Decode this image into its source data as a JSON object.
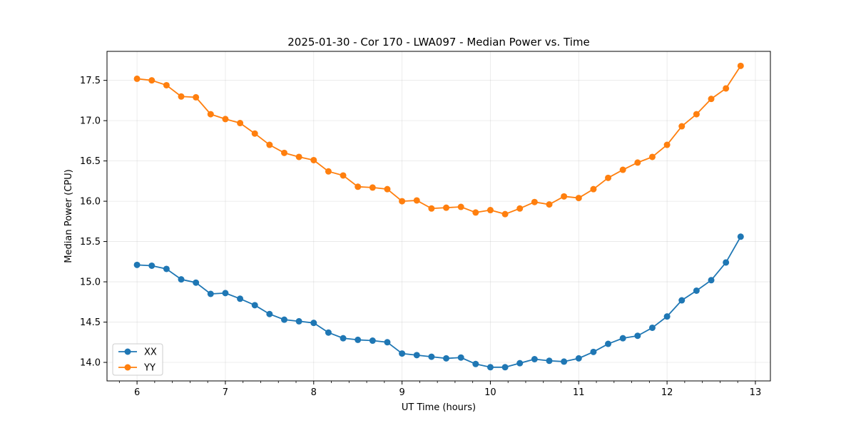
{
  "chart_data": {
    "type": "line",
    "title": "2025-01-30 - Cor 170 - LWA097 - Median Power vs. Time",
    "xlabel": "UT Time (hours)",
    "ylabel": "Median Power (CPU)",
    "xlim": [
      5.66,
      13.17
    ],
    "ylim": [
      13.77,
      17.86
    ],
    "xticks": [
      6,
      7,
      8,
      9,
      10,
      11,
      12,
      13
    ],
    "yticks": [
      14.0,
      14.5,
      15.0,
      15.5,
      16.0,
      16.5,
      17.0,
      17.5
    ],
    "xtick_labels": [
      "6",
      "7",
      "8",
      "9",
      "10",
      "11",
      "12",
      "13"
    ],
    "ytick_labels": [
      "14.0",
      "14.5",
      "15.0",
      "15.5",
      "16.0",
      "16.5",
      "17.0",
      "17.5"
    ],
    "grid": true,
    "legend_position": "lower-left",
    "x": [
      6.0,
      6.1667,
      6.3333,
      6.5,
      6.6667,
      6.8333,
      7.0,
      7.1667,
      7.3333,
      7.5,
      7.6667,
      7.8333,
      8.0,
      8.1667,
      8.3333,
      8.5,
      8.6667,
      8.8333,
      9.0,
      9.1667,
      9.3333,
      9.5,
      9.6667,
      9.8333,
      10.0,
      10.1667,
      10.3333,
      10.5,
      10.6667,
      10.8333,
      11.0,
      11.1667,
      11.3333,
      11.5,
      11.6667,
      11.8333,
      12.0,
      12.1667,
      12.3333,
      12.5,
      12.6667,
      12.8333
    ],
    "series": [
      {
        "name": "XX",
        "color": "#1f77b4",
        "values": [
          15.21,
          15.2,
          15.16,
          15.03,
          14.99,
          14.85,
          14.86,
          14.79,
          14.71,
          14.6,
          14.53,
          14.51,
          14.49,
          14.37,
          14.3,
          14.28,
          14.27,
          14.25,
          14.11,
          14.09,
          14.07,
          14.05,
          14.06,
          13.98,
          13.94,
          13.94,
          13.99,
          14.04,
          14.02,
          14.01,
          14.05,
          14.13,
          14.23,
          14.3,
          14.33,
          14.43,
          14.57,
          14.77,
          14.89,
          15.02,
          15.24,
          15.56
        ]
      },
      {
        "name": "YY",
        "color": "#ff7f0e",
        "values": [
          17.52,
          17.5,
          17.44,
          17.3,
          17.29,
          17.08,
          17.02,
          16.97,
          16.84,
          16.7,
          16.6,
          16.55,
          16.51,
          16.37,
          16.32,
          16.18,
          16.17,
          16.15,
          16.0,
          16.01,
          15.91,
          15.92,
          15.93,
          15.86,
          15.89,
          15.84,
          15.91,
          15.99,
          15.96,
          16.06,
          16.04,
          16.15,
          16.29,
          16.39,
          16.48,
          16.55,
          16.7,
          16.93,
          17.08,
          17.27,
          17.4,
          17.68
        ]
      }
    ]
  }
}
